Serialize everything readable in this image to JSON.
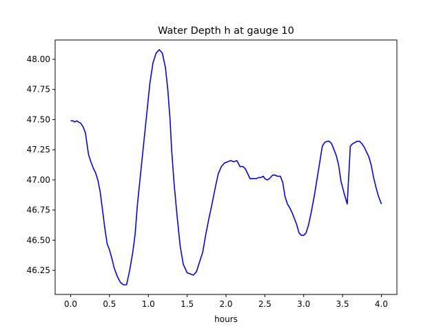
{
  "chart_data": {
    "type": "line",
    "title": "Water Depth h at gauge 10",
    "xlabel": "hours",
    "ylabel": "",
    "xlim": [
      -0.2,
      4.2
    ],
    "ylim": [
      46.05,
      48.16
    ],
    "xticks": [
      0.0,
      0.5,
      1.0,
      1.5,
      2.0,
      2.5,
      3.0,
      3.5,
      4.0
    ],
    "xtick_labels": [
      "0.0",
      "0.5",
      "1.0",
      "1.5",
      "2.0",
      "2.5",
      "3.0",
      "3.5",
      "4.0"
    ],
    "yticks": [
      46.25,
      46.5,
      46.75,
      47.0,
      47.25,
      47.5,
      47.75,
      48.0
    ],
    "ytick_labels": [
      "46.25",
      "46.50",
      "46.75",
      "47.00",
      "47.25",
      "47.50",
      "47.75",
      "48.00"
    ],
    "grid": false,
    "line_color": "#0000ff",
    "series": [
      {
        "x": [
          0.0,
          0.03,
          0.05,
          0.08,
          0.1,
          0.13,
          0.16,
          0.19,
          0.21,
          0.23,
          0.26,
          0.29,
          0.32,
          0.35,
          0.38,
          0.41,
          0.44,
          0.47,
          0.5,
          0.53,
          0.56,
          0.6,
          0.64,
          0.68,
          0.72,
          0.76,
          0.8,
          0.83,
          0.86,
          0.9,
          0.94,
          0.98,
          1.02,
          1.06,
          1.1,
          1.14,
          1.18,
          1.22,
          1.25,
          1.28,
          1.3,
          1.33,
          1.37,
          1.41,
          1.45,
          1.5,
          1.54,
          1.58,
          1.62,
          1.65,
          1.7,
          1.74,
          1.78,
          1.82,
          1.86,
          1.9,
          1.94,
          1.98,
          2.02,
          2.06,
          2.1,
          2.14,
          2.18,
          2.2,
          2.22,
          2.25,
          2.28,
          2.31,
          2.35,
          2.39,
          2.42,
          2.45,
          2.48,
          2.5,
          2.53,
          2.56,
          2.6,
          2.63,
          2.66,
          2.7,
          2.73,
          2.76,
          2.79,
          2.82,
          2.85,
          2.88,
          2.91,
          2.94,
          2.97,
          3.0,
          3.03,
          3.06,
          3.1,
          3.14,
          3.17,
          3.2,
          3.22,
          3.24,
          3.27,
          3.3,
          3.33,
          3.36,
          3.39,
          3.42,
          3.45,
          3.48,
          3.52,
          3.56,
          3.6,
          3.63,
          3.66,
          3.69,
          3.72,
          3.75,
          3.78,
          3.81,
          3.84,
          3.87,
          3.9,
          3.93,
          3.96,
          4.0
        ],
        "y": [
          47.49,
          47.49,
          47.48,
          47.49,
          47.48,
          47.47,
          47.44,
          47.39,
          47.3,
          47.21,
          47.15,
          47.1,
          47.06,
          47.0,
          46.9,
          46.75,
          46.6,
          46.47,
          46.42,
          46.35,
          46.27,
          46.2,
          46.15,
          46.13,
          46.13,
          46.25,
          46.4,
          46.55,
          46.8,
          47.05,
          47.3,
          47.55,
          47.8,
          47.97,
          48.05,
          48.08,
          48.05,
          47.93,
          47.75,
          47.5,
          47.25,
          46.98,
          46.7,
          46.45,
          46.3,
          46.23,
          46.22,
          46.21,
          46.24,
          46.3,
          46.4,
          46.55,
          46.68,
          46.8,
          46.93,
          47.05,
          47.11,
          47.14,
          47.15,
          47.16,
          47.15,
          47.16,
          47.11,
          47.11,
          47.11,
          47.09,
          47.05,
          47.01,
          47.01,
          47.01,
          47.02,
          47.02,
          47.03,
          47.01,
          47.0,
          47.01,
          47.04,
          47.04,
          47.03,
          47.03,
          46.98,
          46.86,
          46.8,
          46.77,
          46.73,
          46.68,
          46.63,
          46.56,
          46.54,
          46.54,
          46.56,
          46.62,
          46.74,
          46.88,
          47.0,
          47.12,
          47.2,
          47.28,
          47.31,
          47.32,
          47.32,
          47.3,
          47.25,
          47.2,
          47.12,
          46.99,
          46.89,
          46.8,
          47.28,
          47.3,
          47.31,
          47.32,
          47.32,
          47.3,
          47.27,
          47.23,
          47.19,
          47.12,
          47.02,
          46.94,
          46.87,
          46.8
        ]
      }
    ]
  }
}
